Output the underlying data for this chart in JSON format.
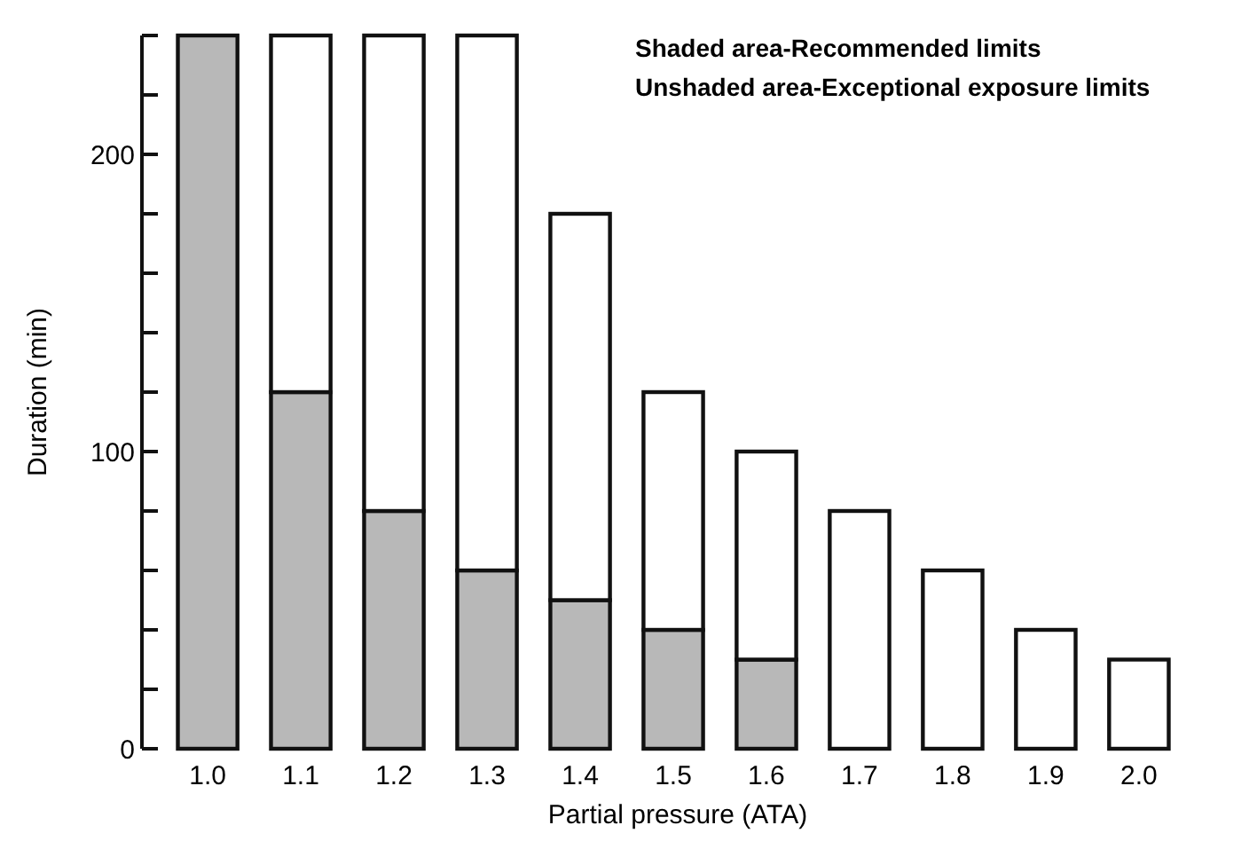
{
  "chart_data": {
    "type": "bar",
    "stacked": true,
    "xlabel": "Partial pressure (ATA)",
    "ylabel": "Duration (min)",
    "categories": [
      "1.0",
      "1.1",
      "1.2",
      "1.3",
      "1.4",
      "1.5",
      "1.6",
      "1.7",
      "1.8",
      "1.9",
      "2.0"
    ],
    "series": [
      {
        "color": "#b8b8b8",
        "values": [
          240,
          120,
          80,
          60,
          50,
          40,
          30,
          0,
          0,
          0,
          0
        ]
      },
      {
        "color": "#ffffff",
        "values": [
          0,
          120,
          160,
          180,
          130,
          80,
          70,
          80,
          60,
          40,
          30
        ]
      }
    ],
    "ylim": [
      0,
      240
    ],
    "yticks": [
      0,
      {
        "value": 20,
        "label": null
      },
      {
        "value": 40,
        "label": null
      },
      {
        "value": 60,
        "label": null
      },
      {
        "value": 80,
        "label": null
      },
      100,
      {
        "value": 120,
        "label": null
      },
      {
        "value": 140,
        "label": null
      },
      {
        "value": 160,
        "label": null
      },
      {
        "value": 180,
        "label": null
      },
      200,
      {
        "value": 220,
        "label": null
      },
      {
        "value": 240,
        "label": null
      }
    ],
    "annotations": [
      "Shaded area-Recommended limits",
      "Unshaded area-Exceptional exposure limits"
    ]
  }
}
